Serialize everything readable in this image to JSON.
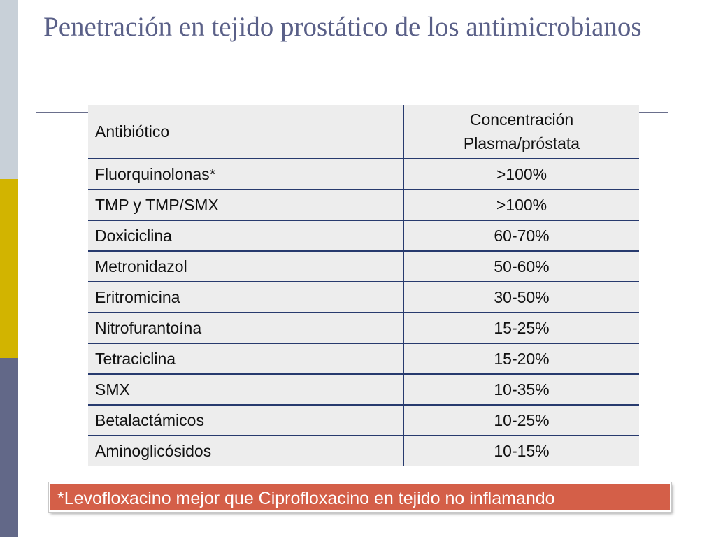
{
  "slide": {
    "title": "Penetración en tejido prostático de los antimicrobianos",
    "stripe_colors": [
      "#c8d0d8",
      "#d2b400",
      "#626888"
    ],
    "title_color": "#5a6088"
  },
  "table": {
    "headers": {
      "antibiotic": "Antibiótico",
      "concentration": "Concentración Plasma/próstata"
    },
    "rows": [
      {
        "antibiotic": "Fluorquinolonas*",
        "concentration": ">100%"
      },
      {
        "antibiotic": "TMP y TMP/SMX",
        "concentration": ">100%"
      },
      {
        "antibiotic": "Doxiciclina",
        "concentration": "60-70%"
      },
      {
        "antibiotic": "Metronidazol",
        "concentration": "50-60%"
      },
      {
        "antibiotic": "Eritromicina",
        "concentration": "30-50%"
      },
      {
        "antibiotic": "Nitrofurantoína",
        "concentration": "15-25%"
      },
      {
        "antibiotic": "Tetraciclina",
        "concentration": "15-20%"
      },
      {
        "antibiotic": "SMX",
        "concentration": "10-35%"
      },
      {
        "antibiotic": "Betalactámicos",
        "concentration": "10-25%"
      },
      {
        "antibiotic": "Aminoglicósidos",
        "concentration": "10-15%"
      }
    ],
    "line_color": "#273a6e",
    "cell_background": "#ededed"
  },
  "note": {
    "text": "*Levofloxacino mejor que Ciprofloxacino en tejido no inflamando",
    "background": "#d45f48"
  }
}
